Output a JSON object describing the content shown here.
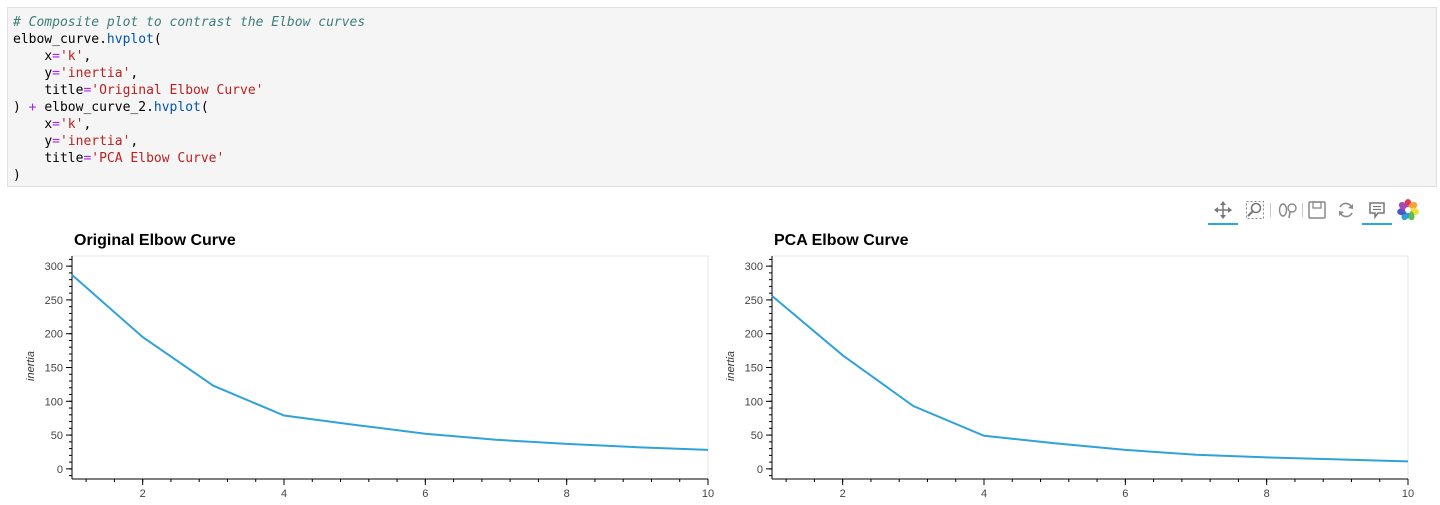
{
  "code": {
    "comment": "# Composite plot to contrast the Elbow curves",
    "var1": "elbow_curve",
    "dot": ".",
    "method": "hvplot",
    "open": "(",
    "indent": "    ",
    "x_kw": "x",
    "eq": "=",
    "x_val": "'k'",
    "comma": ",",
    "y_kw": "y",
    "y_val": "'inertia'",
    "title_kw": "title",
    "title1_val": "'Original Elbow Curve'",
    "close": ")",
    "plus": "+",
    "var2": "elbow_curve_2",
    "title2_val": "'PCA Elbow Curve'"
  },
  "toolbar": {
    "icons": [
      "pan-icon",
      "box-zoom-icon",
      "wheel-zoom-icon",
      "save-icon",
      "reset-icon",
      "hover-icon",
      "bokeh-logo-icon"
    ]
  },
  "plots": {
    "left": {
      "title": "Original Elbow Curve",
      "ylabel": "inertia"
    },
    "right": {
      "title": "PCA Elbow Curve",
      "ylabel": "inertia"
    }
  },
  "chart_data": [
    {
      "type": "line",
      "title": "Original Elbow Curve",
      "xlabel": "",
      "ylabel": "inertia",
      "x": [
        1,
        2,
        3,
        4,
        5,
        6,
        7,
        8,
        9,
        10
      ],
      "series": [
        {
          "values": [
            287,
            195,
            123,
            79,
            65,
            52,
            43,
            37,
            32,
            28
          ]
        }
      ],
      "xlim": [
        1,
        10
      ],
      "ylim": [
        -15,
        315
      ],
      "xticks": [
        2,
        4,
        6,
        8,
        10
      ],
      "yticks": [
        0,
        50,
        100,
        150,
        200,
        250,
        300
      ],
      "line_color": "#30a2da",
      "grid": false
    },
    {
      "type": "line",
      "title": "PCA Elbow Curve",
      "xlabel": "",
      "ylabel": "inertia",
      "x": [
        1,
        2,
        3,
        4,
        5,
        6,
        7,
        8,
        9,
        10
      ],
      "series": [
        {
          "values": [
            256,
            168,
            93,
            49,
            38,
            28,
            21,
            17,
            14,
            11
          ]
        }
      ],
      "xlim": [
        1,
        10
      ],
      "ylim": [
        -15,
        315
      ],
      "xticks": [
        2,
        4,
        6,
        8,
        10
      ],
      "yticks": [
        0,
        50,
        100,
        150,
        200,
        250,
        300
      ],
      "line_color": "#30a2da",
      "grid": false
    }
  ]
}
